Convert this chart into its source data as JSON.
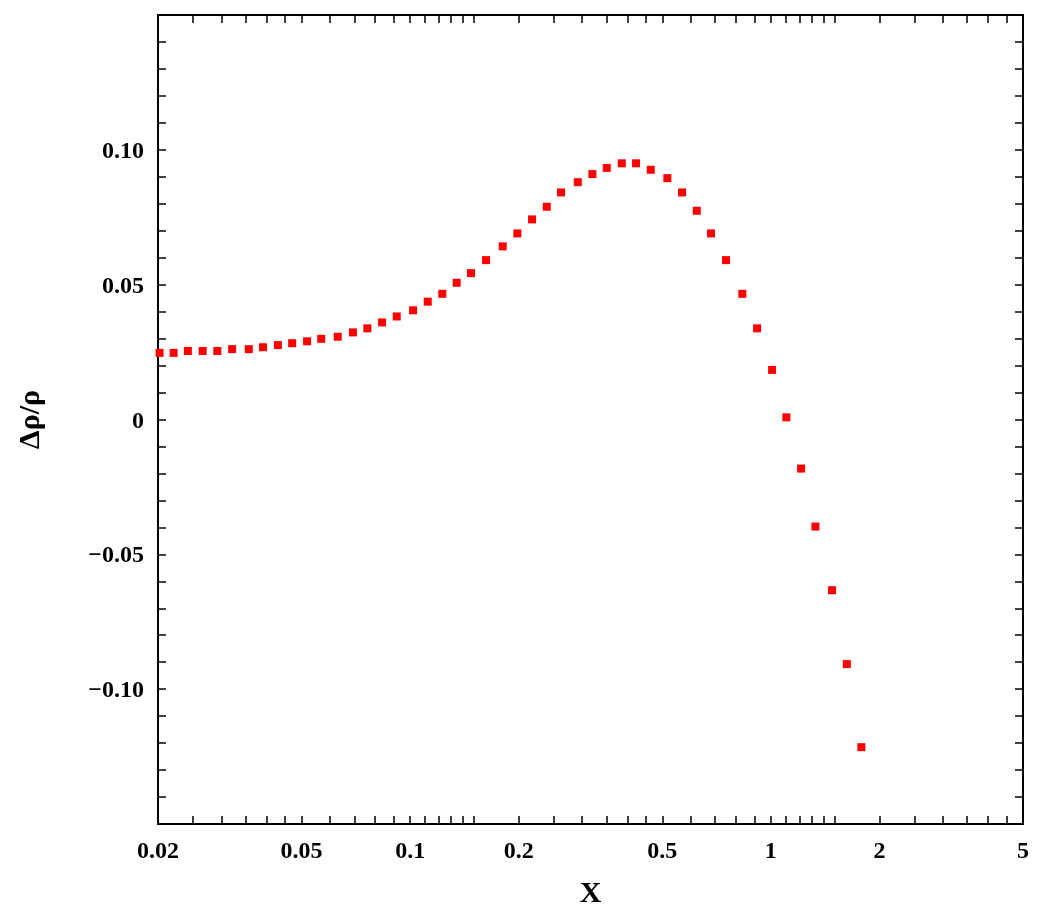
{
  "chart_data": {
    "type": "scatter",
    "xlabel": "X",
    "ylabel": "Δρ/ρ",
    "log": "x",
    "grid": false,
    "marker": "square",
    "xlim": [
      0.02,
      5
    ],
    "ylim": [
      -0.15,
      0.15
    ],
    "xticks": [
      0.02,
      {
        "value": 0.025,
        "label": null
      },
      {
        "value": 0.03,
        "label": null
      },
      {
        "value": 0.035,
        "label": null
      },
      {
        "value": 0.04,
        "label": null
      },
      {
        "value": 0.045,
        "label": null
      },
      0.05,
      {
        "value": 0.06,
        "label": null
      },
      {
        "value": 0.07,
        "label": null
      },
      {
        "value": 0.08,
        "label": null
      },
      {
        "value": 0.09,
        "label": null
      },
      0.1,
      {
        "value": 0.11,
        "label": null
      },
      {
        "value": 0.12,
        "label": null
      },
      {
        "value": 0.13,
        "label": null
      },
      {
        "value": 0.14,
        "label": null
      },
      {
        "value": 0.15,
        "label": null
      },
      0.2,
      {
        "value": 0.25,
        "label": null
      },
      {
        "value": 0.3,
        "label": null
      },
      {
        "value": 0.35,
        "label": null
      },
      {
        "value": 0.4,
        "label": null
      },
      {
        "value": 0.45,
        "label": null
      },
      0.5,
      {
        "value": 0.6,
        "label": null
      },
      {
        "value": 0.7,
        "label": null
      },
      {
        "value": 0.8,
        "label": null
      },
      {
        "value": 0.9,
        "label": null
      },
      1,
      {
        "value": 1.1,
        "label": null
      },
      {
        "value": 1.2,
        "label": null
      },
      {
        "value": 1.3,
        "label": null
      },
      {
        "value": 1.4,
        "label": null
      },
      {
        "value": 1.5,
        "label": null
      },
      2,
      {
        "value": 2.5,
        "label": null
      },
      {
        "value": 3,
        "label": null
      },
      {
        "value": 3.5,
        "label": null
      },
      {
        "value": 4,
        "label": null
      },
      {
        "value": 4.5,
        "label": null
      },
      5
    ],
    "yticks": [
      {
        "value": -0.14,
        "label": null
      },
      {
        "value": -0.13,
        "label": null
      },
      {
        "value": -0.12,
        "label": null
      },
      {
        "value": -0.11,
        "label": null
      },
      {
        "value": -0.1,
        "label": "−0.10"
      },
      {
        "value": -0.09,
        "label": null
      },
      {
        "value": -0.08,
        "label": null
      },
      {
        "value": -0.07,
        "label": null
      },
      {
        "value": -0.06,
        "label": null
      },
      {
        "value": -0.05,
        "label": "−0.05"
      },
      {
        "value": -0.04,
        "label": null
      },
      {
        "value": -0.03,
        "label": null
      },
      {
        "value": -0.02,
        "label": null
      },
      {
        "value": -0.01,
        "label": null
      },
      0,
      {
        "value": 0.01,
        "label": null
      },
      {
        "value": 0.02,
        "label": null
      },
      {
        "value": 0.03,
        "label": null
      },
      {
        "value": 0.04,
        "label": null
      },
      0.05,
      {
        "value": 0.06,
        "label": null
      },
      {
        "value": 0.07,
        "label": null
      },
      {
        "value": 0.08,
        "label": null
      },
      {
        "value": 0.09,
        "label": null
      },
      {
        "value": 0.1,
        "label": "0.10"
      },
      {
        "value": 0.11,
        "label": null
      },
      {
        "value": 0.12,
        "label": null
      },
      {
        "value": 0.13,
        "label": null
      },
      {
        "value": 0.14,
        "label": null
      }
    ],
    "x": [
      0.0202,
      0.0221,
      0.0242,
      0.0266,
      0.0292,
      0.0321,
      0.0357,
      0.0391,
      0.043,
      0.0471,
      0.0518,
      0.0567,
      0.063,
      0.0694,
      0.0761,
      0.0836,
      0.0918,
      0.1019,
      0.1119,
      0.1228,
      0.1346,
      0.1475,
      0.1624,
      0.1806,
      0.1982,
      0.2178,
      0.2392,
      0.262,
      0.2916,
      0.32,
      0.3508,
      0.3861,
      0.4229,
      0.4646,
      0.5164,
      0.5673,
      0.6231,
      0.6826,
      0.7512,
      0.8336,
      0.9157,
      1.008,
      1.104,
      1.213,
      1.329,
      1.478,
      1.624,
      1.782
    ],
    "series": [
      {
        "color": "#ff0000",
        "values": [
          0.0247,
          0.0247,
          0.0254,
          0.0254,
          0.0254,
          0.0261,
          0.0261,
          0.0268,
          0.0276,
          0.0283,
          0.029,
          0.0299,
          0.0307,
          0.0323,
          0.0338,
          0.036,
          0.0382,
          0.0405,
          0.0437,
          0.0466,
          0.0507,
          0.0543,
          0.0591,
          0.0642,
          0.069,
          0.0742,
          0.0789,
          0.0842,
          0.088,
          0.091,
          0.0933,
          0.095,
          0.095,
          0.0926,
          0.0895,
          0.0842,
          0.0774,
          0.069,
          0.0591,
          0.0466,
          0.0338,
          0.0184,
          0.0008,
          -0.0182,
          -0.0397,
          -0.0633,
          -0.0907,
          -0.1215
        ]
      }
    ]
  }
}
